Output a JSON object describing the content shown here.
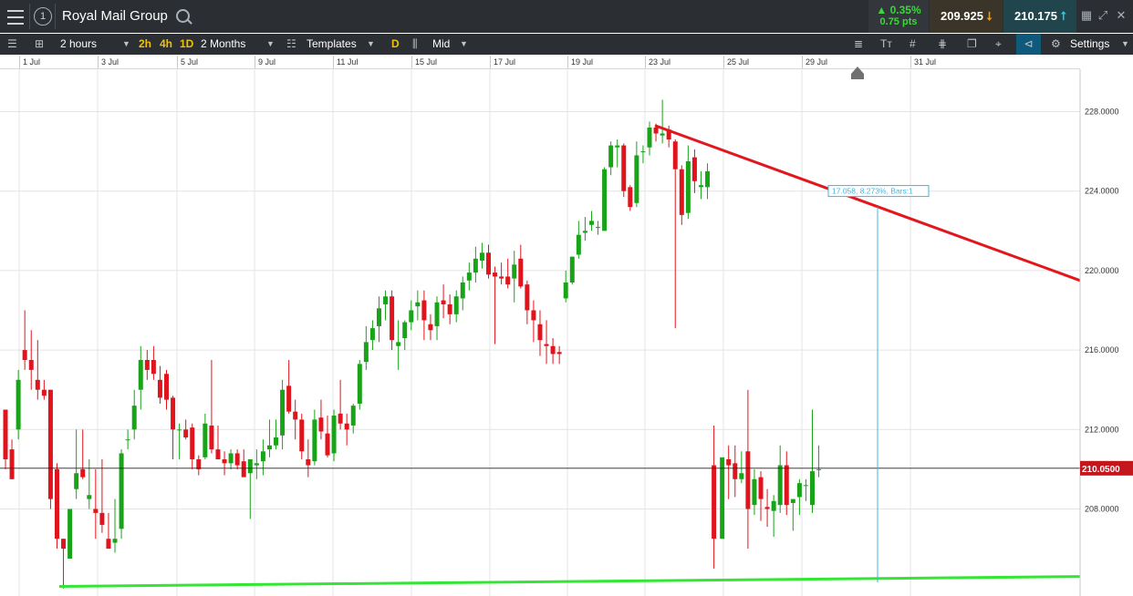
{
  "header": {
    "instrument": "Royal Mail Group",
    "change_pct": "▲ 0.35%",
    "change_pts": "0.75 pts",
    "sell_price": "209.925",
    "buy_price": "210.175",
    "window_number": "1"
  },
  "toolbar": {
    "interval": "2 hours",
    "quick_2h": "2h",
    "quick_4h": "4h",
    "quick_1d": "1D",
    "range": "2 Months",
    "templates": "Templates",
    "d_label": "D",
    "price_type": "Mid",
    "settings": "Settings"
  },
  "xaxis_labels": [
    "1 Jul",
    "3 Jul",
    "5 Jul",
    "9 Jul",
    "11 Jul",
    "15 Jul",
    "17 Jul",
    "19 Jul",
    "23 Jul",
    "25 Jul",
    "29 Jul",
    "31 Jul"
  ],
  "yaxis_labels": [
    "228.0000",
    "224.0000",
    "220.0000",
    "216.0000",
    "212.0000",
    "208.0000"
  ],
  "current_price": "210.0500",
  "measure_label": "17.058, 8.273%, Bars:1",
  "colors": {
    "up": "#19a319",
    "down": "#e0141c",
    "resistance": "#e3161c",
    "support": "#33e633",
    "measure": "#3fb6e0"
  },
  "chart_data": {
    "type": "candlestick",
    "ylim": [
      204,
      230
    ],
    "candles": [
      [
        213,
        213,
        210,
        210.5
      ],
      [
        211,
        211.5,
        209.5,
        209.5
      ],
      [
        212,
        215,
        211.5,
        214.5
      ],
      [
        216,
        218,
        215,
        215.5
      ],
      [
        215.5,
        217,
        214,
        215
      ],
      [
        214.5,
        216.5,
        213.5,
        214
      ],
      [
        214,
        214.5,
        213.5,
        213.7
      ],
      [
        214,
        214,
        208,
        208.5
      ],
      [
        210,
        210.3,
        206,
        206.5
      ],
      [
        206.5,
        206.5,
        204,
        206
      ],
      [
        205.5,
        208,
        205.5,
        208
      ],
      [
        209,
        212,
        208.5,
        209.8
      ],
      [
        210,
        212,
        209.5,
        209.6
      ],
      [
        208.5,
        210.5,
        208,
        208.7
      ],
      [
        208,
        210,
        206.5,
        207.8
      ],
      [
        207.8,
        210.5,
        206.8,
        207.2
      ],
      [
        206.5,
        207.8,
        206,
        206
      ],
      [
        206.3,
        208.5,
        205.8,
        206.5
      ],
      [
        207,
        211,
        206.5,
        210.8
      ],
      [
        211.5,
        212,
        211,
        211.5
      ],
      [
        212,
        214,
        211.5,
        213.2
      ],
      [
        214,
        216.2,
        213,
        215.5
      ],
      [
        215.5,
        216,
        214.5,
        215
      ],
      [
        215.5,
        216.2,
        214.5,
        214.8
      ],
      [
        214.5,
        215.2,
        213.3,
        213.6
      ],
      [
        214.8,
        215,
        213,
        213.5
      ],
      [
        213.6,
        213.7,
        210.5,
        212
      ],
      [
        212,
        212.3,
        210.5,
        212
      ],
      [
        212,
        212.5,
        211.5,
        211.6
      ],
      [
        212.1,
        212.3,
        210,
        210.5
      ],
      [
        210.5,
        210.7,
        209.7,
        210
      ],
      [
        210.6,
        212.8,
        210.5,
        212.3
      ],
      [
        212.2,
        215.5,
        210.8,
        211
      ],
      [
        211,
        212.2,
        210.5,
        210.5
      ],
      [
        210.5,
        210.9,
        209.7,
        210.3
      ],
      [
        210.3,
        211,
        210,
        210.8
      ],
      [
        210.8,
        211,
        210,
        210.2
      ],
      [
        210.4,
        211,
        209.7,
        209.6
      ],
      [
        209.8,
        210.5,
        207.5,
        210.5
      ],
      [
        210.2,
        211,
        209.5,
        210.3
      ],
      [
        210.4,
        211.5,
        209.7,
        210.9
      ],
      [
        211,
        212.5,
        210.6,
        211.2
      ],
      [
        211.2,
        212.5,
        211,
        211.6
      ],
      [
        211.7,
        214.5,
        211,
        214
      ],
      [
        214.2,
        215.5,
        212.8,
        212.9
      ],
      [
        212.9,
        213.5,
        211.5,
        212.5
      ],
      [
        212.5,
        212.8,
        210.5,
        210.9
      ],
      [
        210.5,
        211.5,
        209.6,
        210.2
      ],
      [
        210.4,
        213,
        210.2,
        212.5
      ],
      [
        212.6,
        213.5,
        211.5,
        211.9
      ],
      [
        211.8,
        212.7,
        210.6,
        210.7
      ],
      [
        210.8,
        213,
        210.4,
        212.7
      ],
      [
        212.8,
        214.5,
        212,
        212.3
      ],
      [
        212.3,
        212.8,
        211.2,
        212
      ],
      [
        212.2,
        213.3,
        211.8,
        213.2
      ],
      [
        213.3,
        215.5,
        213,
        215.3
      ],
      [
        215.4,
        217.2,
        215,
        216.4
      ],
      [
        216.5,
        217.5,
        216,
        217.1
      ],
      [
        217.2,
        218.7,
        216.4,
        218.1
      ],
      [
        218.3,
        219,
        217.5,
        218.7
      ],
      [
        218.7,
        219,
        216,
        216.5
      ],
      [
        216.2,
        217.5,
        215,
        216.4
      ],
      [
        216.6,
        217.5,
        216,
        217.4
      ],
      [
        217.4,
        218.5,
        217,
        218
      ],
      [
        218.2,
        219,
        217.5,
        218.4
      ],
      [
        218.5,
        219,
        216.5,
        217.5
      ],
      [
        217.3,
        217.8,
        216.5,
        217
      ],
      [
        217.2,
        218.7,
        216.5,
        218.4
      ],
      [
        218.5,
        219.3,
        217.6,
        218.3
      ],
      [
        218.3,
        218.8,
        217.3,
        217.8
      ],
      [
        217.8,
        219,
        217.4,
        218.7
      ],
      [
        218.6,
        219.7,
        218,
        219.4
      ],
      [
        219.5,
        220.4,
        219,
        219.9
      ],
      [
        219.9,
        221.2,
        219.4,
        220.6
      ],
      [
        220.5,
        221.4,
        220.1,
        220.9
      ],
      [
        220.9,
        221.3,
        219.6,
        219.8
      ],
      [
        219.9,
        220.2,
        216.3,
        219.7
      ],
      [
        219.7,
        220.4,
        219.3,
        219.6
      ],
      [
        219.7,
        220.6,
        219.1,
        219.3
      ],
      [
        219.6,
        221,
        218.4,
        220.3
      ],
      [
        220.6,
        221.3,
        219.1,
        219.2
      ],
      [
        219.3,
        219.5,
        217.3,
        218
      ],
      [
        218,
        218.5,
        216.4,
        217.5
      ],
      [
        217.3,
        218,
        215.7,
        216.5
      ],
      [
        216.3,
        217.5,
        215.3,
        216.2
      ],
      [
        216.2,
        216.6,
        215.3,
        215.8
      ],
      [
        215.9,
        216.2,
        215.3,
        215.8
      ],
      [
        218.6,
        220,
        218.4,
        219.4
      ],
      [
        219.4,
        220.7,
        219.3,
        220.7
      ],
      [
        220.8,
        222.5,
        220.6,
        221.8
      ],
      [
        221.9,
        222.7,
        221.5,
        222
      ],
      [
        222.3,
        223,
        222,
        222.5
      ],
      [
        222.2,
        222.5,
        221.8,
        222.2
      ],
      [
        222,
        225.2,
        222,
        225.1
      ],
      [
        225.2,
        226.5,
        224.8,
        226.3
      ],
      [
        226.2,
        226.6,
        225.2,
        226.3
      ],
      [
        226.3,
        226.4,
        223.7,
        224
      ],
      [
        224.2,
        224.3,
        223,
        223.2
      ],
      [
        223.4,
        226.5,
        223.2,
        225.8
      ],
      [
        226,
        226.3,
        225.4,
        226
      ],
      [
        226.2,
        227.5,
        225.8,
        227.2
      ],
      [
        227.2,
        227.4,
        226.5,
        226.9
      ],
      [
        226.8,
        228.6,
        226.4,
        226.9
      ],
      [
        227.1,
        227.3,
        226.2,
        226.6
      ],
      [
        226.5,
        226.6,
        217.1,
        225.1
      ],
      [
        225.1,
        225.3,
        222.3,
        222.8
      ],
      [
        222.9,
        226.3,
        222.6,
        225.5
      ],
      [
        225.7,
        226.1,
        223.9,
        224.5
      ],
      [
        224.2,
        225,
        223.6,
        224.3
      ],
      [
        224.2,
        225.4,
        223.6,
        225
      ],
      [
        210.2,
        212.2,
        205,
        206.5
      ],
      [
        206.5,
        210.5,
        206.5,
        210.6
      ],
      [
        210.5,
        211.2,
        208.5,
        210.2
      ],
      [
        210.3,
        211.2,
        208.6,
        209.5
      ],
      [
        209.5,
        210.9,
        209.3,
        209.8
      ],
      [
        210.9,
        214,
        206,
        208
      ],
      [
        208.2,
        210,
        207.7,
        209.5
      ],
      [
        209.6,
        209.9,
        207.4,
        208.5
      ],
      [
        208.1,
        209,
        207.1,
        208
      ],
      [
        207.9,
        208.7,
        206.6,
        208.4
      ],
      [
        208.2,
        211.2,
        207.8,
        210.2
      ],
      [
        210.2,
        210.9,
        207.7,
        208.2
      ],
      [
        208.3,
        208.4,
        206.9,
        208.5
      ],
      [
        208.6,
        209.5,
        207.7,
        209.3
      ],
      [
        209.2,
        209.5,
        208.4,
        209.2
      ],
      [
        208.2,
        213,
        207.8,
        209.9
      ],
      [
        210,
        211.2,
        209.6,
        210
      ]
    ]
  }
}
